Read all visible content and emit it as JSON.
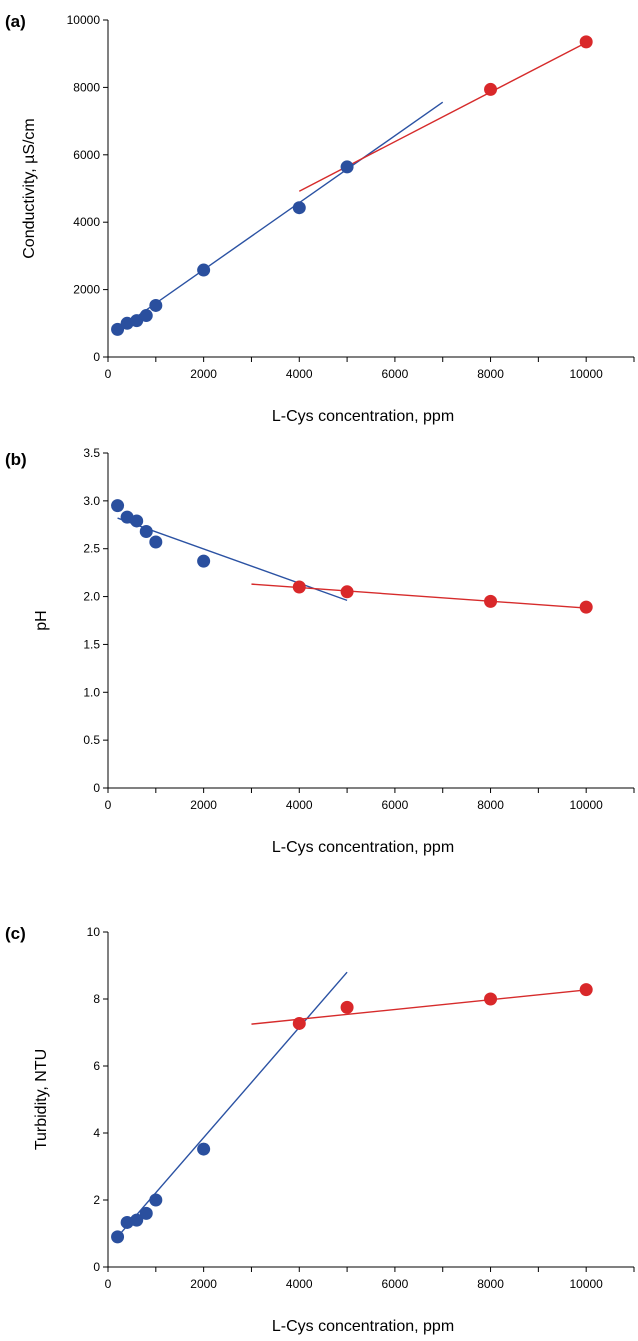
{
  "colors": {
    "blue": "#2a4f9e",
    "red": "#d9282a",
    "blue_line": "#2b52a3",
    "red_line": "#d62b2b"
  },
  "chart_data": [
    {
      "type": "scatter",
      "panel_label": "(a)",
      "xlabel": "L-Cys concentration, ppm",
      "ylabel": "Conductivity, µS/cm",
      "xlim": [
        0,
        11000
      ],
      "ylim": [
        0,
        10000
      ],
      "xticks": [
        0,
        2000,
        4000,
        6000,
        8000,
        10000
      ],
      "xtick_labels": [
        "0",
        "2000",
        "4000",
        "6000",
        "8000",
        "10000"
      ],
      "yticks": [
        0,
        2000,
        4000,
        6000,
        8000,
        10000
      ],
      "ytick_labels": [
        "0",
        "2000",
        "4000",
        "6000",
        "8000",
        "10000"
      ],
      "series": [
        {
          "color": "blue",
          "x": [
            200,
            400,
            600,
            800,
            1000,
            2000,
            4000,
            5000
          ],
          "y": [
            820,
            1000,
            1080,
            1230,
            1530,
            2580,
            4430,
            5640
          ]
        },
        {
          "color": "red",
          "x": [
            8000,
            10000
          ],
          "y": [
            7940,
            9350
          ]
        }
      ],
      "fit_lines": [
        {
          "color": "blue_line",
          "x": [
            200,
            7000
          ],
          "y": [
            800,
            7560
          ]
        },
        {
          "color": "red_line",
          "x": [
            4000,
            10000
          ],
          "y": [
            4920,
            9330
          ]
        }
      ]
    },
    {
      "type": "scatter",
      "panel_label": "(b)",
      "xlabel": "L-Cys concentration, ppm",
      "ylabel": "pH",
      "xlim": [
        0,
        11000
      ],
      "ylim": [
        0,
        3.5
      ],
      "xticks": [
        0,
        2000,
        4000,
        6000,
        8000,
        10000
      ],
      "xtick_labels": [
        "0",
        "2000",
        "4000",
        "6000",
        "8000",
        "10000"
      ],
      "yticks": [
        0,
        0.5,
        1.0,
        1.5,
        2.0,
        2.5,
        3.0,
        3.5
      ],
      "ytick_labels": [
        "0",
        "0.5",
        "1.0",
        "1.5",
        "2.0",
        "2.5",
        "3.0",
        "3.5"
      ],
      "series": [
        {
          "color": "blue",
          "x": [
            200,
            400,
            600,
            800,
            1000,
            2000
          ],
          "y": [
            2.95,
            2.83,
            2.79,
            2.68,
            2.57,
            2.37
          ]
        },
        {
          "color": "red",
          "x": [
            4000,
            5000,
            8000,
            10000
          ],
          "y": [
            2.1,
            2.05,
            1.95,
            1.89
          ]
        }
      ],
      "fit_lines": [
        {
          "color": "blue_line",
          "x": [
            200,
            5000
          ],
          "y": [
            2.82,
            1.96
          ]
        },
        {
          "color": "red_line",
          "x": [
            3000,
            10000
          ],
          "y": [
            2.13,
            1.88
          ]
        }
      ]
    },
    {
      "type": "scatter",
      "panel_label": "(c)",
      "xlabel": "L-Cys concentration, ppm",
      "ylabel": "Turbidity, NTU",
      "xlim": [
        0,
        11000
      ],
      "ylim": [
        0,
        10
      ],
      "xticks": [
        0,
        2000,
        4000,
        6000,
        8000,
        10000
      ],
      "xtick_labels": [
        "0",
        "2000",
        "4000",
        "6000",
        "8000",
        "10000"
      ],
      "yticks": [
        0,
        2,
        4,
        6,
        8,
        10
      ],
      "ytick_labels": [
        "0",
        "2",
        "4",
        "6",
        "8",
        "10"
      ],
      "series": [
        {
          "color": "blue",
          "x": [
            200,
            400,
            600,
            800,
            1000,
            2000
          ],
          "y": [
            0.9,
            1.33,
            1.4,
            1.6,
            2.0,
            3.52
          ]
        },
        {
          "color": "red",
          "x": [
            4000,
            5000,
            8000,
            10000
          ],
          "y": [
            7.27,
            7.75,
            8.0,
            8.28
          ]
        }
      ],
      "fit_lines": [
        {
          "color": "blue_line",
          "x": [
            200,
            5000
          ],
          "y": [
            0.9,
            8.8
          ]
        },
        {
          "color": "red_line",
          "x": [
            3000,
            10000
          ],
          "y": [
            7.25,
            8.27
          ]
        }
      ]
    }
  ]
}
